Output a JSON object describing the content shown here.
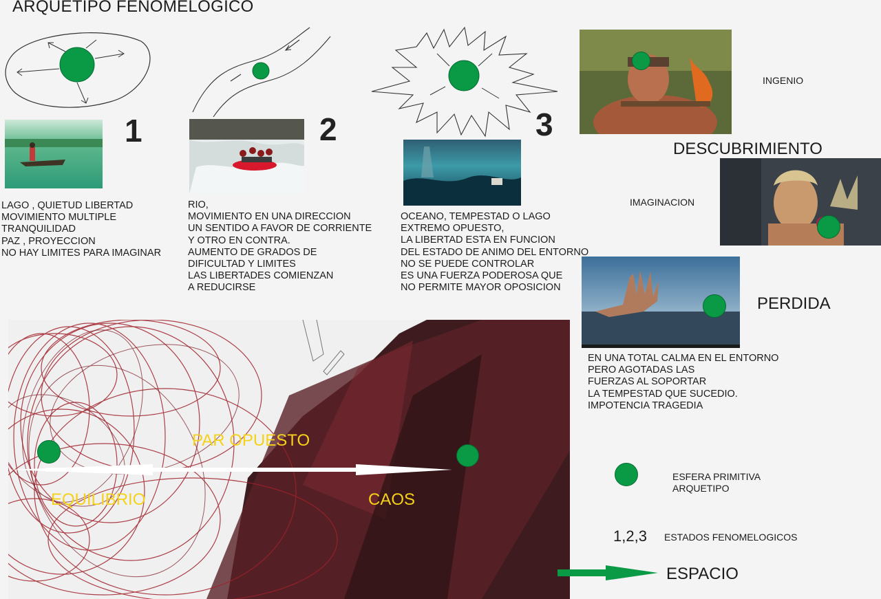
{
  "title": "ARQUETIPO FENOMELOGICO",
  "states": [
    {
      "number": "1",
      "description": "LAGO , QUIETUD LIBERTAD\nMOVIMIENTO MULTIPLE\nTRANQUILIDAD\nPAZ , PROYECCION\nNO HAY LIMITES PARA IMAGINAR"
    },
    {
      "number": "2",
      "description": "RIO,\nMOVIMIENTO EN UNA DIRECCION\nUN SENTIDO A FAVOR DE CORRIENTE\nY OTRO EN CONTRA.\nAUMENTO DE GRADOS DE\nDIFICULTAD Y LIMITES\nLAS LIBERTADES COMIENZAN\nA REDUCIRSE"
    },
    {
      "number": "3",
      "description": "OCEANO, TEMPESTAD O LAGO\nEXTREMO OPUESTO,\nLA LIBERTAD ESTA EN FUNCION\nDEL ESTADO DE ANIMO DEL ENTORNO\nNO SE PUEDE CONTROLAR\nES UNA FUERZA PODEROSA QUE\nNO PERMITE MAYOR OPOSICION"
    }
  ],
  "right_panel": {
    "ingenio": "INGENIO",
    "descubrimiento": "DESCUBRIMIENTO",
    "imaginacion": "IMAGINACION",
    "perdida": "PERDIDA",
    "perdida_description": "EN UNA TOTAL CALMA EN EL ENTORNO\nPERO AGOTADAS LAS\nFUERZAS AL SOPORTAR\nLA TEMPESTAD QUE SUCEDIO.\nIMPOTENCIA TRAGEDIA"
  },
  "bottom": {
    "par_opuesto": "PAR OPUESTO",
    "equilibrio": "EQUILIBRIO",
    "caos": "CAOS"
  },
  "legend": {
    "sphere_label": "ESFERA PRIMITIVA\nARQUETIPO",
    "states_symbol": "1,2,3",
    "states_label": "ESTADOS FENOMELOGICOS",
    "space_label": "ESPACIO"
  },
  "colors": {
    "sphere": "#0a9a46",
    "highlight_text": "#f4d21a",
    "dark_red": "#4a1e22",
    "arrow_green": "#0a9a46"
  }
}
